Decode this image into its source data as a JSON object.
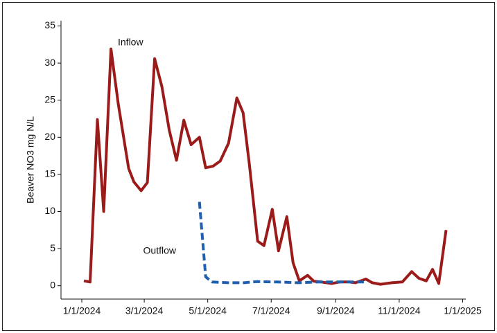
{
  "chart_data": {
    "type": "line",
    "y_label": "Beaver NO3 mg N/L",
    "xlim": [
      "2023-12-12",
      "2025-01-04"
    ],
    "xticks": [
      {
        "value": "2024-01-01",
        "label": "1/1/2024"
      },
      {
        "value": "2024-03-01",
        "label": "3/1/2024"
      },
      {
        "value": "2024-05-01",
        "label": "5/1/2024"
      },
      {
        "value": "2024-07-01",
        "label": "7/1/2024"
      },
      {
        "value": "2024-09-01",
        "label": "9/1/2024"
      },
      {
        "value": "2024-11-01",
        "label": "11/1/2024"
      },
      {
        "value": "2025-01-01",
        "label": "1/1/2025"
      }
    ],
    "ylim": [
      -1.8,
      35.7
    ],
    "yticks": [
      0,
      5,
      10,
      15,
      20,
      25,
      30,
      35
    ],
    "grid": false,
    "series": [
      {
        "name": "Inflow",
        "color": "#9b1b1b",
        "dashed": false,
        "x": [
          "2024-01-03",
          "2024-01-09",
          "2024-01-16",
          "2024-01-22",
          "2024-01-29",
          "2024-02-05",
          "2024-02-15",
          "2024-02-20",
          "2024-02-27",
          "2024-03-04",
          "2024-03-11",
          "2024-03-18",
          "2024-03-25",
          "2024-04-01",
          "2024-04-08",
          "2024-04-15",
          "2024-04-23",
          "2024-04-29",
          "2024-05-06",
          "2024-05-13",
          "2024-05-21",
          "2024-05-29",
          "2024-06-04",
          "2024-06-10",
          "2024-06-18",
          "2024-06-24",
          "2024-07-02",
          "2024-07-08",
          "2024-07-16",
          "2024-07-22",
          "2024-07-28",
          "2024-08-05",
          "2024-08-11",
          "2024-08-18",
          "2024-08-28",
          "2024-09-05",
          "2024-09-14",
          "2024-09-20",
          "2024-09-30",
          "2024-10-06",
          "2024-10-14",
          "2024-10-25",
          "2024-11-04",
          "2024-11-13",
          "2024-11-20",
          "2024-11-27",
          "2024-12-03",
          "2024-12-09",
          "2024-12-16"
        ],
        "values": [
          0.65,
          0.5,
          22.4,
          10,
          31.9,
          24.5,
          15.8,
          14,
          12.8,
          13.9,
          30.6,
          26.8,
          21,
          16.9,
          22.3,
          19,
          20,
          15.9,
          16.1,
          16.8,
          19.2,
          25.3,
          23.3,
          16.4,
          6,
          5.4,
          10.3,
          4.7,
          9.3,
          3.1,
          0.65,
          1.4,
          0.6,
          0.5,
          0.3,
          0.5,
          0.5,
          0.4,
          0.9,
          0.4,
          0.2,
          0.4,
          0.5,
          1.9,
          1,
          0.65,
          2.2,
          0.3,
          7.5
        ]
      },
      {
        "name": "Outflow",
        "color": "#1f5fb0",
        "dashed": true,
        "x": [
          "2024-04-23",
          "2024-04-29",
          "2024-05-05",
          "2024-05-21",
          "2024-06-05",
          "2024-06-17",
          "2024-07-07",
          "2024-07-27",
          "2024-08-16",
          "2024-09-05",
          "2024-09-28"
        ],
        "values": [
          11.3,
          1.2,
          0.5,
          0.4,
          0.4,
          0.55,
          0.5,
          0.4,
          0.5,
          0.5,
          0.5
        ]
      }
    ]
  }
}
